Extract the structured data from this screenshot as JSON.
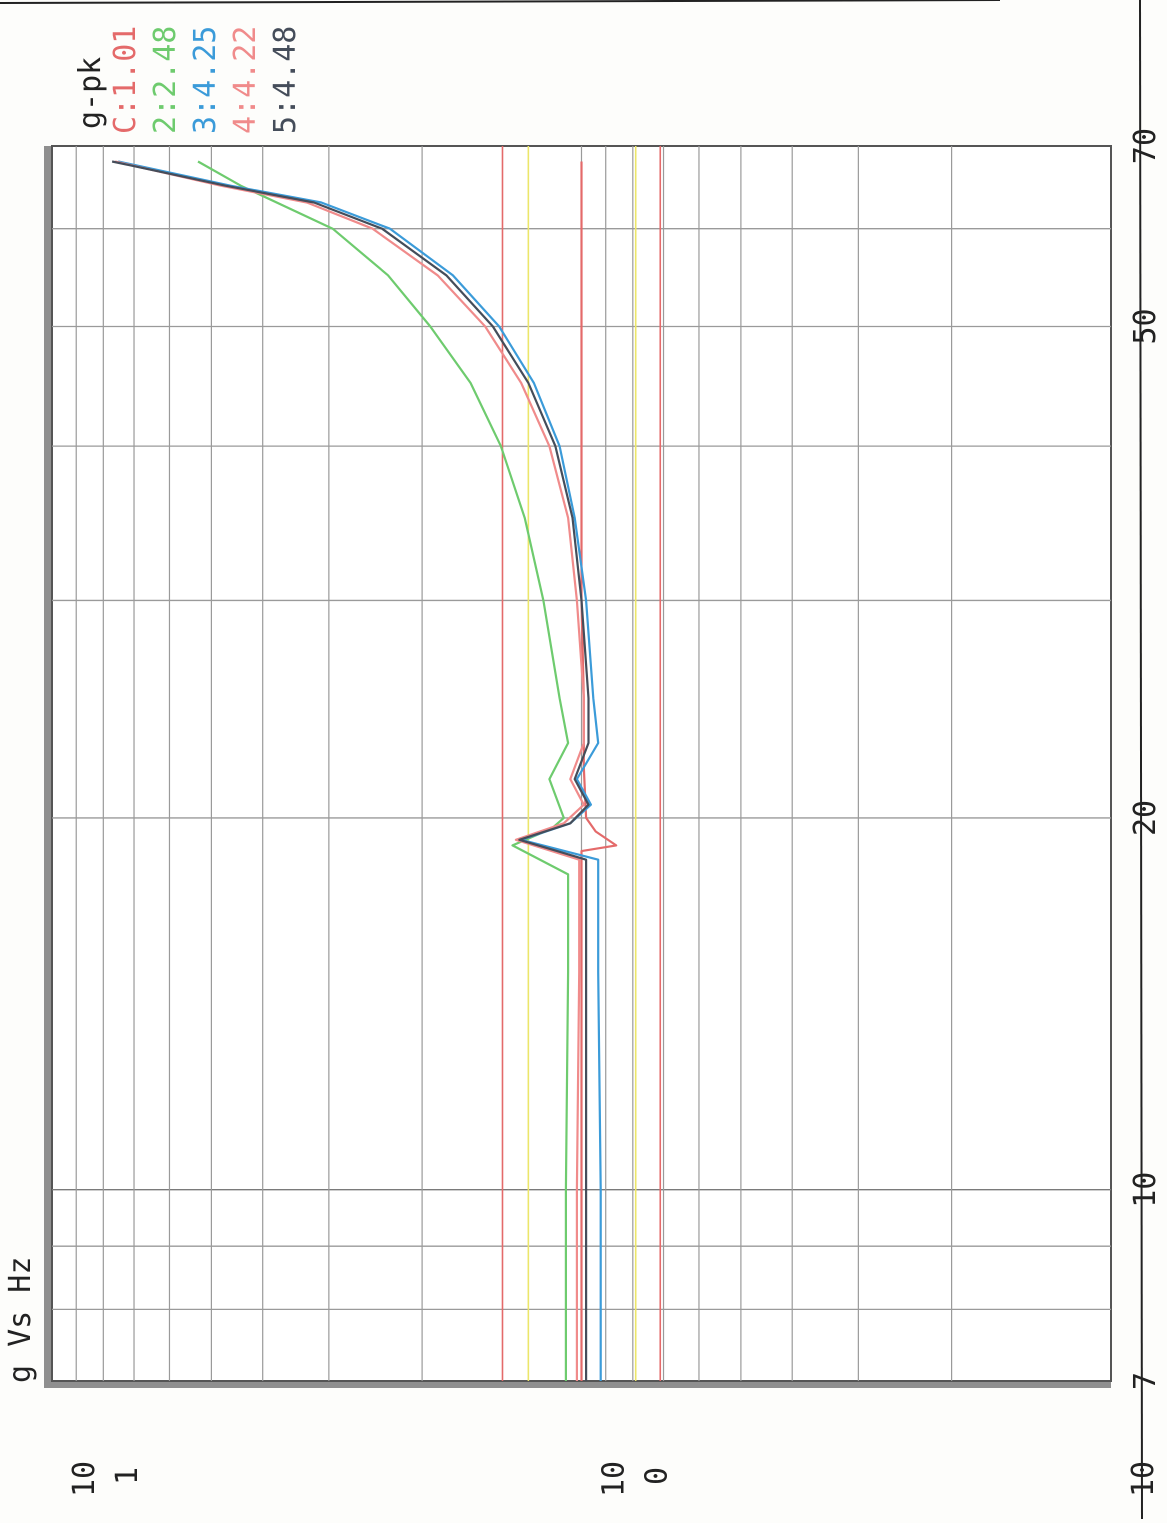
{
  "chart_data": {
    "type": "line",
    "title": "g Vs Hz",
    "xlabel": "",
    "ylabel": "",
    "x_scale": "log",
    "y_scale": "log",
    "xlim": [
      7,
      70
    ],
    "ylim": [
      0.1,
      10
    ],
    "x_ticks": [
      {
        "value": 7,
        "label": "7"
      },
      {
        "value": 10,
        "label": "10"
      },
      {
        "value": 20,
        "label": "20"
      },
      {
        "value": 50,
        "label": "50"
      },
      {
        "value": 70,
        "label": "70"
      }
    ],
    "y_ticks": [
      {
        "value": 10,
        "base": "10",
        "exp": "1"
      },
      {
        "value": 1,
        "base": "10",
        "exp": "0"
      },
      {
        "value": 0.1,
        "base": "10",
        "exp": "-1"
      }
    ],
    "grid": true,
    "legend": {
      "title": "g-pk",
      "placement": "top-right",
      "entries": [
        {
          "label": "C:1.01",
          "color": "#e46a6a"
        },
        {
          "label": "2:2.48",
          "color": "#6ecb6e"
        },
        {
          "label": "3:4.25",
          "color": "#3b9bd9"
        },
        {
          "label": "4:4.22",
          "color": "#f08b8b"
        },
        {
          "label": "5:4.48",
          "color": "#454d5a"
        }
      ]
    },
    "limit_lines": [
      {
        "y": 1.41,
        "color": "#e46a6a"
      },
      {
        "y": 1.26,
        "color": "#ece66a"
      },
      {
        "y": 0.71,
        "color": "#e46a6a"
      },
      {
        "y": 0.79,
        "color": "#ece66a"
      }
    ],
    "series": [
      {
        "name": "C:1.01",
        "color": "#e46a6a",
        "points": [
          [
            7,
            1.0
          ],
          [
            10,
            1.0
          ],
          [
            15,
            1.0
          ],
          [
            18.8,
            1.0
          ],
          [
            19,
            0.86
          ],
          [
            19.5,
            0.94
          ],
          [
            20,
            0.98
          ],
          [
            22,
            0.99
          ],
          [
            25,
            0.99
          ],
          [
            30,
            1.0
          ],
          [
            40,
            1.0
          ],
          [
            50,
            1.0
          ],
          [
            60,
            1.0
          ],
          [
            68,
            1.0
          ]
        ]
      },
      {
        "name": "2:2.48",
        "color": "#6ecb6e",
        "points": [
          [
            7,
            1.07
          ],
          [
            10,
            1.07
          ],
          [
            15,
            1.06
          ],
          [
            18,
            1.06
          ],
          [
            19,
            1.35
          ],
          [
            19.6,
            1.14
          ],
          [
            20,
            1.08
          ],
          [
            21.5,
            1.15
          ],
          [
            23,
            1.06
          ],
          [
            25,
            1.1
          ],
          [
            30,
            1.18
          ],
          [
            35,
            1.28
          ],
          [
            40,
            1.42
          ],
          [
            45,
            1.62
          ],
          [
            50,
            1.93
          ],
          [
            55,
            2.32
          ],
          [
            60,
            2.95
          ],
          [
            65,
            4.4
          ],
          [
            68,
            5.3
          ]
        ]
      },
      {
        "name": "3:4.25",
        "color": "#3b9bd9",
        "points": [
          [
            7,
            0.92
          ],
          [
            10,
            0.92
          ],
          [
            15,
            0.93
          ],
          [
            18.5,
            0.93
          ],
          [
            19.2,
            1.3
          ],
          [
            19.8,
            1.05
          ],
          [
            20.5,
            0.96
          ],
          [
            21.5,
            1.02
          ],
          [
            23,
            0.93
          ],
          [
            25,
            0.95
          ],
          [
            30,
            0.98
          ],
          [
            35,
            1.03
          ],
          [
            40,
            1.1
          ],
          [
            45,
            1.23
          ],
          [
            50,
            1.43
          ],
          [
            55,
            1.75
          ],
          [
            60,
            2.3
          ],
          [
            63,
            3.1
          ],
          [
            65,
            4.6
          ],
          [
            68,
            7.5
          ]
        ]
      },
      {
        "name": "4:4.22",
        "color": "#f08b8b",
        "points": [
          [
            7,
            1.02
          ],
          [
            10,
            1.02
          ],
          [
            15,
            1.01
          ],
          [
            18.5,
            1.01
          ],
          [
            19.2,
            1.33
          ],
          [
            19.8,
            1.08
          ],
          [
            20.5,
            0.99
          ],
          [
            21.5,
            1.05
          ],
          [
            23,
            0.99
          ],
          [
            25,
            0.99
          ],
          [
            30,
            1.02
          ],
          [
            35,
            1.06
          ],
          [
            40,
            1.15
          ],
          [
            45,
            1.3
          ],
          [
            50,
            1.52
          ],
          [
            55,
            1.87
          ],
          [
            60,
            2.48
          ],
          [
            63,
            3.3
          ],
          [
            65,
            4.8
          ],
          [
            68,
            7.6
          ]
        ]
      },
      {
        "name": "5:4.48",
        "color": "#454d5a",
        "points": [
          [
            7,
            0.98
          ],
          [
            10,
            0.98
          ],
          [
            15,
            0.98
          ],
          [
            18.5,
            0.98
          ],
          [
            19.2,
            1.31
          ],
          [
            19.8,
            1.05
          ],
          [
            20.5,
            0.97
          ],
          [
            21.5,
            1.03
          ],
          [
            23,
            0.97
          ],
          [
            25,
            0.97
          ],
          [
            30,
            1.0
          ],
          [
            35,
            1.04
          ],
          [
            40,
            1.12
          ],
          [
            45,
            1.26
          ],
          [
            50,
            1.47
          ],
          [
            55,
            1.8
          ],
          [
            60,
            2.38
          ],
          [
            63,
            3.2
          ],
          [
            65,
            4.7
          ],
          [
            68,
            7.7
          ]
        ]
      }
    ]
  }
}
